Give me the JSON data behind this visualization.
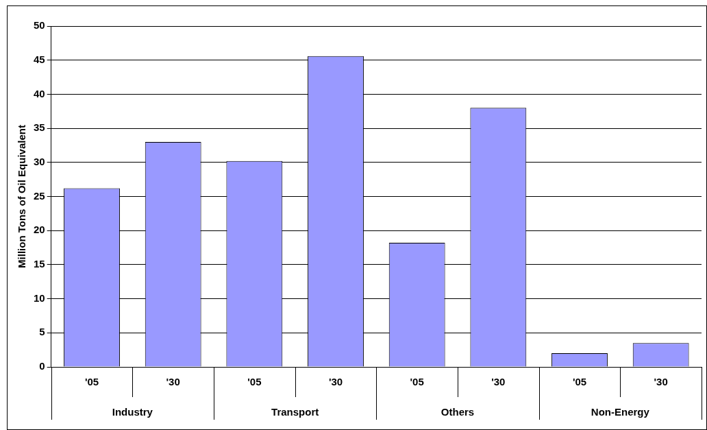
{
  "chart_data": {
    "type": "bar",
    "ylabel": "Million Tons of Oil Equivalent",
    "categories": [
      "'05",
      "'30",
      "'05",
      "'30",
      "'05",
      "'30",
      "'05",
      "'30"
    ],
    "values": [
      26.2,
      33,
      30.2,
      45.6,
      18.2,
      38,
      2,
      3.5
    ],
    "color": "#9999ff",
    "ylim": [
      0,
      50
    ],
    "yticks": [
      0,
      5,
      10,
      15,
      20,
      25,
      30,
      35,
      40,
      45,
      50
    ],
    "grid": "y",
    "annotations": [
      "Industry",
      "Transport",
      "Others",
      "Non-Energy"
    ]
  }
}
